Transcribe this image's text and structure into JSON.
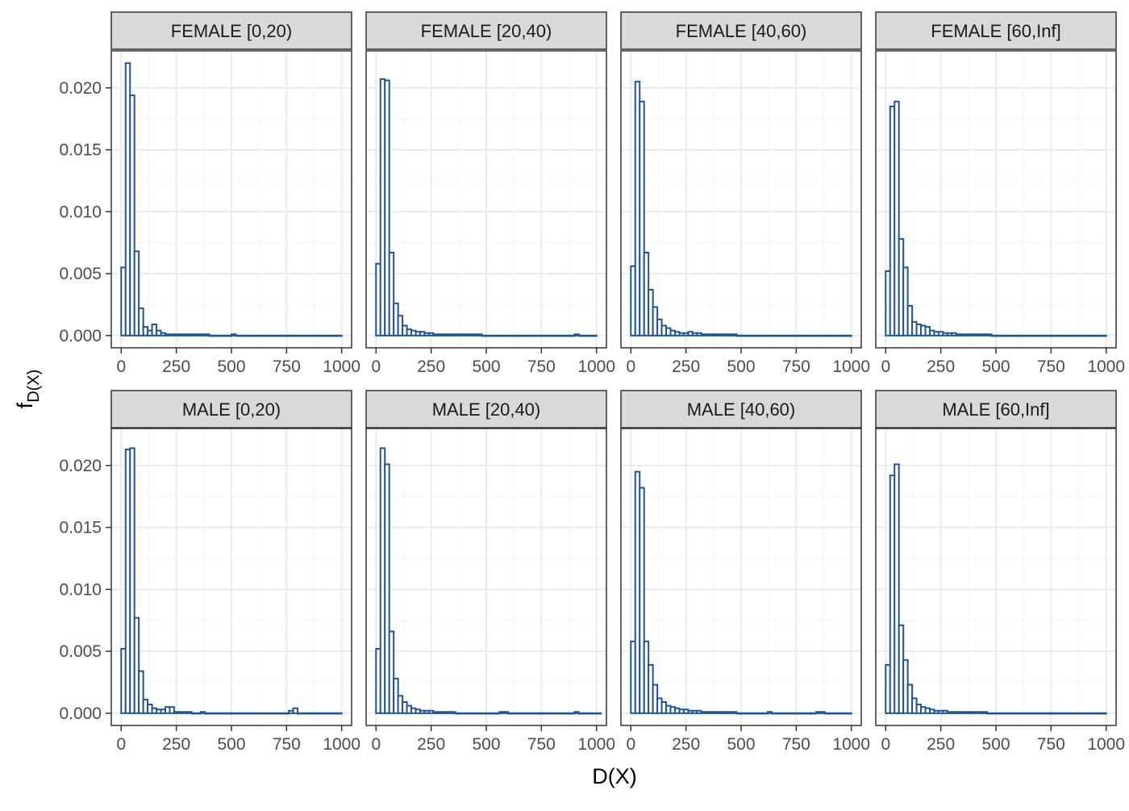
{
  "colors": {
    "bar_stroke": "#1f5591",
    "bar_fill": "#ffffff",
    "panel_border": "#333333",
    "strip_fill": "#d9d9d9",
    "grid_major": "#ebebeb",
    "grid_minor": "#f5f5f5"
  },
  "chart_data": {
    "type": "bar",
    "subtype": "faceted histogram",
    "xlabel": "D(X)",
    "ylabel": "f",
    "ylabel_subscript": "D(X)",
    "xlim": [
      0,
      1000
    ],
    "ylim": [
      0,
      0.022
    ],
    "x_ticks": [
      "0",
      "250",
      "500",
      "750",
      "1000"
    ],
    "y_ticks": [
      "0.000",
      "0.005",
      "0.010",
      "0.015",
      "0.020"
    ],
    "bin_width": 20,
    "grid": true,
    "facets": [
      {
        "label": "FEMALE [0,20)",
        "values": [
          0.0055,
          0.022,
          0.0194,
          0.0068,
          0.0022,
          0.0007,
          0.0004,
          0.0009,
          0.0004,
          0.0002,
          0.0001,
          0.0001,
          0.0001,
          0.0001,
          0.0001,
          0.0001,
          0.0001,
          0.0001,
          0.0001,
          0.0001,
          0,
          0,
          0,
          0,
          0,
          0.0001,
          0,
          0,
          0,
          0,
          0,
          0,
          0,
          0,
          0,
          0,
          0,
          0,
          0,
          0,
          0,
          0,
          0,
          0,
          0,
          0,
          0,
          0,
          0,
          0
        ]
      },
      {
        "label": "FEMALE [20,40)",
        "values": [
          0.0058,
          0.0207,
          0.0206,
          0.0067,
          0.0026,
          0.0016,
          0.0008,
          0.0005,
          0.0004,
          0.0003,
          0.0003,
          0.0002,
          0.0002,
          0.0001,
          0.0001,
          0.0001,
          0.0001,
          0.0001,
          0.0001,
          0.0001,
          0.0001,
          0.0001,
          0.0001,
          0.0001,
          0,
          0,
          0,
          0,
          0,
          0,
          0,
          0,
          0,
          0,
          0,
          0,
          0,
          0,
          0,
          0,
          0,
          0,
          0,
          0,
          0,
          0.0001,
          0,
          0,
          0,
          0
        ]
      },
      {
        "label": "FEMALE [40,60)",
        "values": [
          0.0056,
          0.0205,
          0.0189,
          0.0067,
          0.0037,
          0.0023,
          0.0013,
          0.0008,
          0.0006,
          0.0004,
          0.0003,
          0.0002,
          0.0002,
          0.0003,
          0.0002,
          0.0002,
          0.0001,
          0.0001,
          0.0001,
          0.0001,
          0.0001,
          0.0001,
          0.0001,
          0.0001,
          0,
          0,
          0,
          0,
          0,
          0,
          0,
          0,
          0,
          0,
          0,
          0,
          0,
          0,
          0,
          0,
          0,
          0,
          0,
          0,
          0,
          0,
          0,
          0,
          0,
          0
        ]
      },
      {
        "label": "FEMALE [60,Inf]",
        "values": [
          0.0052,
          0.0185,
          0.0189,
          0.0078,
          0.0055,
          0.0024,
          0.0011,
          0.0009,
          0.0008,
          0.0007,
          0.0004,
          0.0003,
          0.0003,
          0.0002,
          0.0002,
          0.0002,
          0.0001,
          0.0001,
          0.0001,
          0.0001,
          0.0001,
          0.0001,
          0.0001,
          0.0001,
          0,
          0,
          0,
          0,
          0,
          0,
          0,
          0,
          0,
          0,
          0,
          0,
          0,
          0,
          0,
          0,
          0,
          0,
          0,
          0,
          0,
          0,
          0,
          0,
          0,
          0
        ]
      },
      {
        "label": "MALE [0,20)",
        "values": [
          0.0052,
          0.0213,
          0.0214,
          0.0077,
          0.0034,
          0.0011,
          0.0007,
          0.0004,
          0.0003,
          0.0003,
          0.0005,
          0.0005,
          0.0001,
          0.0001,
          0.0001,
          0.0001,
          0,
          0,
          0.0001,
          0,
          0,
          0,
          0,
          0,
          0,
          0,
          0,
          0,
          0,
          0,
          0,
          0,
          0,
          0,
          0,
          0,
          0,
          0,
          0.0002,
          0.0004,
          0,
          0,
          0,
          0,
          0,
          0,
          0,
          0,
          0,
          0
        ]
      },
      {
        "label": "MALE [20,40)",
        "values": [
          0.0052,
          0.0214,
          0.0201,
          0.0066,
          0.0028,
          0.0014,
          0.0009,
          0.0006,
          0.0004,
          0.0003,
          0.0002,
          0.0002,
          0.0002,
          0.0001,
          0.0001,
          0.0001,
          0.0001,
          0.0001,
          0,
          0,
          0,
          0,
          0,
          0,
          0,
          0,
          0,
          0,
          0.0001,
          0.0001,
          0,
          0,
          0,
          0,
          0,
          0,
          0,
          0,
          0,
          0,
          0,
          0,
          0,
          0,
          0,
          0.0001,
          0,
          0,
          0,
          0,
          0
        ]
      },
      {
        "label": "MALE [40,60)",
        "values": [
          0.0058,
          0.0195,
          0.0182,
          0.0058,
          0.0039,
          0.0023,
          0.0012,
          0.0009,
          0.0006,
          0.0005,
          0.0004,
          0.0003,
          0.0003,
          0.0002,
          0.0002,
          0.0002,
          0.0001,
          0.0001,
          0.0001,
          0.0001,
          0.0001,
          0.0001,
          0.0001,
          0.0001,
          0,
          0,
          0,
          0,
          0,
          0,
          0,
          0.0001,
          0,
          0,
          0,
          0,
          0,
          0,
          0,
          0,
          0,
          0,
          0.0001,
          0.0001,
          0,
          0,
          0,
          0,
          0,
          0
        ]
      },
      {
        "label": "MALE [60,Inf]",
        "values": [
          0.0039,
          0.0192,
          0.0201,
          0.0071,
          0.0043,
          0.0023,
          0.0012,
          0.0007,
          0.0005,
          0.0004,
          0.0003,
          0.0002,
          0.0002,
          0.0002,
          0.0001,
          0.0001,
          0.0001,
          0.0001,
          0.0001,
          0.0001,
          0.0001,
          0.0001,
          0.0001,
          0,
          0,
          0,
          0,
          0,
          0,
          0,
          0,
          0,
          0,
          0,
          0,
          0,
          0,
          0,
          0,
          0,
          0,
          0,
          0,
          0,
          0,
          0,
          0,
          0,
          0,
          0
        ]
      }
    ]
  }
}
